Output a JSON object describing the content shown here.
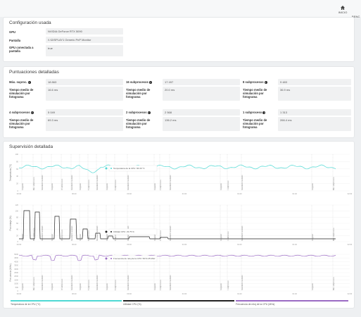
{
  "nav": {
    "home_label": "INICIO",
    "bench_label": "BENC"
  },
  "config": {
    "title": "Configuración usada",
    "rows": [
      {
        "label": "GPU",
        "value": "NVIDIA GeForce RTX 5090"
      },
      {
        "label": "Pantalla",
        "value": "\\\\.\\DISPLAY1 Generic PnP Monitor"
      },
      {
        "label": "GPU conectada a pantalla",
        "value": "true"
      }
    ]
  },
  "scores": {
    "title": "Puntuaciones detalladas",
    "time_label": "Tiempo medio de simulación por fotograma",
    "items": [
      {
        "label": "Máx. suproc.",
        "score": "18 863",
        "time": "16.6 ms"
      },
      {
        "label": "16 subprocesos",
        "score": "17 497",
        "time": "20.0 ms"
      },
      {
        "label": "8 subprocesos",
        "score": "9 483",
        "time": "36.9 ms"
      },
      {
        "label": "4 subprocesos",
        "score": "5 049",
        "time": "69.3 ms"
      },
      {
        "label": "2 subprocesos",
        "score": "2 568",
        "time": "136.2 ms"
      },
      {
        "label": "1 subproceso",
        "score": "1 313",
        "time": "266.4 ms"
      }
    ]
  },
  "monitor": {
    "title": "Supervisión detallada",
    "colors": {
      "temp": "#4fd9d4",
      "util": "#222222",
      "clock": "#9b6bc4"
    },
    "charts": [
      {
        "key": "temp",
        "ylabel": "Temperatura (°C)",
        "yticks": [
          "100",
          "80",
          "60",
          "40",
          "20",
          "0"
        ],
        "tooltip": "Temperatura de la CPU: 66.30 °C",
        "marker_labels": [
          "Cargando",
          "Máx. subprocesos",
          "Guardando resultado",
          "Cargando",
          "16 subprocesos",
          "Guardando resultado",
          "Cargando",
          "8 subprocesos",
          "Guardando resultado",
          "Cargando",
          "4 subprocesos",
          "Guardando resultado",
          "Cargando",
          "2 subprocesos",
          "Guardando resultado",
          "Cargando",
          "1 subproceso",
          "Guardando resultado"
        ]
      },
      {
        "key": "util",
        "ylabel": "Porcentaje (%)",
        "yticks": [
          "120",
          "100",
          "80",
          "60",
          "40",
          "20",
          "0"
        ],
        "tooltip": "Utilidad CPU: 23.75 %",
        "marker_labels": [
          "Cargando",
          "Máx. subprocesos",
          "Guardando resultado",
          "Cargando",
          "16 subprocesos",
          "Guardando resultado",
          "Cargando",
          "8 subprocesos",
          "Guardando resultado",
          "Cargando",
          "4 subprocesos",
          "Guardando resultado",
          "Cargando",
          "2 subprocesos",
          "Guardando resultado",
          "Cargando",
          "1 subproceso",
          "Guardando resultado"
        ]
      },
      {
        "key": "clock",
        "ylabel": "Frecuencia (MHz)",
        "yticks": [
          "5000",
          "4500",
          "4000",
          "3500",
          "3000",
          "2500",
          "2000",
          "1500",
          "1000",
          "500",
          "0"
        ],
        "tooltip": "Frecuencia de reloj de la CPU: 5072.25 MHz",
        "marker_labels": [
          "Cargando",
          "Máx. subprocesos",
          "Guardando resultado",
          "Cargando",
          "16 subprocesos",
          "Guardando resultado",
          "Cargando",
          "8 subprocesos",
          "Guardando resultado",
          "Cargando",
          "4 subprocesos",
          "Guardando resultado",
          "Cargando",
          "2 subprocesos",
          "Guardando resultado",
          "Cargando",
          "1 subproceso",
          "Guardando resultado"
        ]
      }
    ],
    "xticks": [
      "00:00",
      "00:20",
      "00:40",
      "01:00",
      "01:20",
      "01:40",
      "02:00"
    ],
    "legend": [
      {
        "label": "Temperatura de la CPU (°C)",
        "color": "#4fd9d4"
      },
      {
        "label": "Utilidad CPU (%)",
        "color": "#222222"
      },
      {
        "label": "Frecuencia de reloj de la CPU (MHz)",
        "color": "#9b6bc4"
      }
    ]
  }
}
